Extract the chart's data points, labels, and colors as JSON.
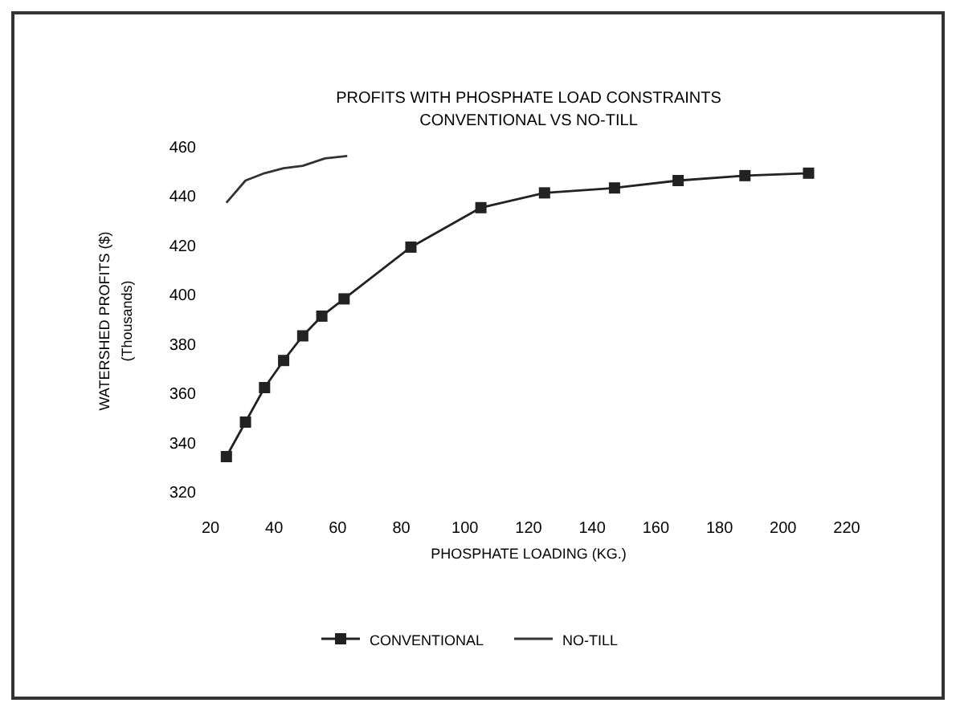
{
  "chart_data": {
    "type": "line",
    "title": "PROFITS WITH PHOSPHATE LOAD CONSTRAINTS",
    "subtitle": "CONVENTIONAL VS NO-TILL",
    "xlabel": "PHOSPHATE LOADING (KG.)",
    "ylabel": "WATERSHED PROFITS ($)\n(Thousands)",
    "xlim": [
      20,
      220
    ],
    "xticks": [
      20,
      40,
      60,
      80,
      100,
      120,
      140,
      160,
      180,
      200,
      220
    ],
    "ylim": [
      320,
      460
    ],
    "yticks": [
      320,
      340,
      360,
      380,
      400,
      420,
      440,
      460
    ],
    "grid": false,
    "legend": "bottom",
    "series": [
      {
        "name": "CONVENTIONAL",
        "color": "#222222",
        "marker": "square",
        "x": [
          25,
          31,
          37,
          43,
          49,
          55,
          62,
          83,
          105,
          125,
          147,
          167,
          188,
          208
        ],
        "values": [
          334,
          348,
          362,
          373,
          383,
          391,
          398,
          419,
          435,
          441,
          443,
          446,
          448,
          449
        ]
      },
      {
        "name": "NO-TILL",
        "color": "#333333",
        "marker": "none",
        "x": [
          25,
          31,
          37,
          43,
          49,
          56,
          63
        ],
        "values": [
          437,
          446,
          449,
          451,
          452,
          455,
          456
        ]
      }
    ]
  }
}
